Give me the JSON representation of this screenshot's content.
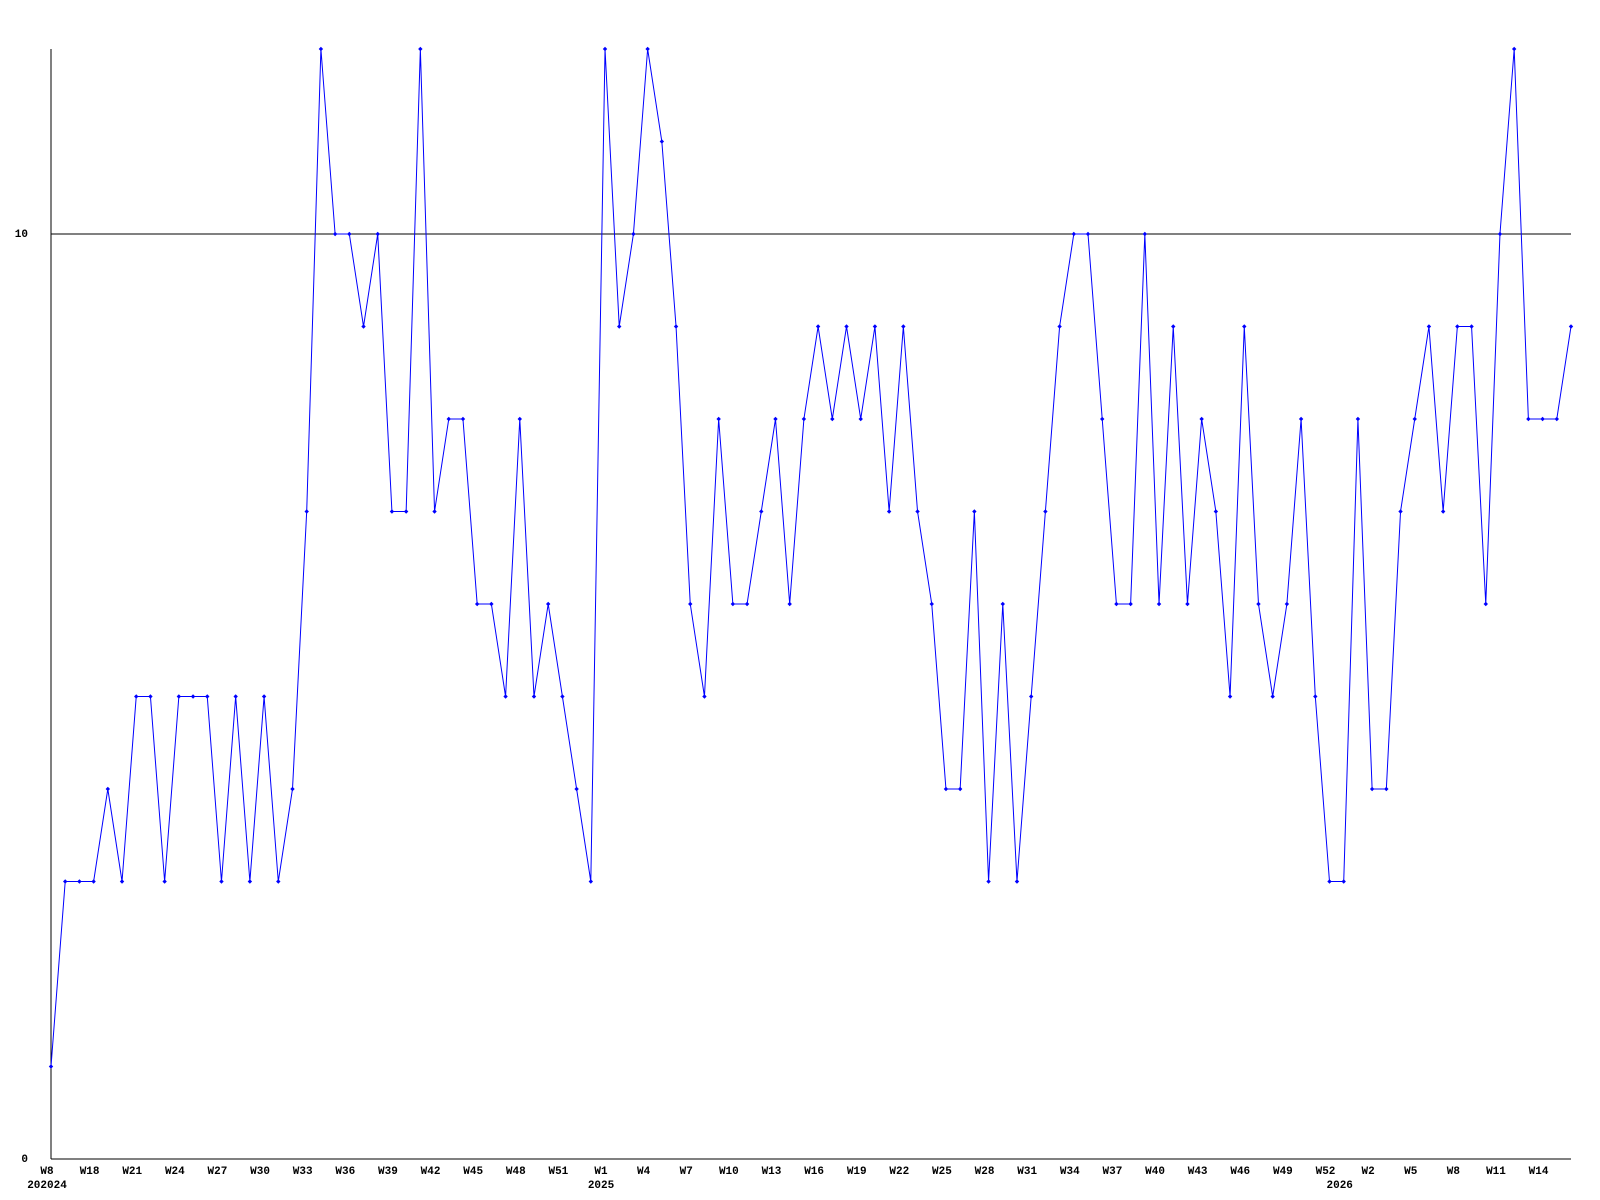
{
  "chart_data": {
    "type": "line",
    "color": "#0000ff",
    "grid": true,
    "ylim": [
      0,
      12
    ],
    "yticks": [
      0,
      10
    ],
    "categories": [
      "W8",
      null,
      null,
      "W18",
      null,
      null,
      "W21",
      null,
      null,
      "W24",
      null,
      null,
      "W27",
      null,
      null,
      "W30",
      null,
      null,
      "W33",
      null,
      null,
      "W36",
      null,
      null,
      "W39",
      null,
      null,
      "W42",
      null,
      null,
      "W45",
      null,
      null,
      "W48",
      null,
      null,
      "W51",
      null,
      null,
      "W1",
      null,
      null,
      "W4",
      null,
      null,
      "W7",
      null,
      null,
      "W10",
      null,
      null,
      "W13",
      null,
      null,
      "W16",
      null,
      null,
      "W19",
      null,
      null,
      "W22",
      null,
      null,
      "W25",
      null,
      null,
      "W28",
      null,
      null,
      "W31",
      null,
      null,
      "W34",
      null,
      null,
      "W37",
      null,
      null,
      "W40",
      null,
      null,
      "W43",
      null,
      null,
      "W46",
      null,
      null,
      "W49",
      null,
      null,
      "W52",
      null,
      null,
      "W2",
      null,
      null,
      "W5",
      null,
      null,
      "W8",
      null,
      null,
      "W11",
      null,
      null,
      "W14",
      null,
      null
    ],
    "year_labels": [
      "202024",
      null,
      null,
      null,
      null,
      null,
      null,
      null,
      null,
      null,
      null,
      null,
      null,
      null,
      null,
      null,
      null,
      null,
      null,
      null,
      null,
      null,
      null,
      null,
      null,
      null,
      null,
      null,
      null,
      null,
      null,
      null,
      null,
      null,
      null,
      null,
      null,
      null,
      null,
      "2025",
      null,
      null,
      null,
      null,
      null,
      null,
      null,
      null,
      null,
      null,
      null,
      null,
      null,
      null,
      null,
      null,
      null,
      null,
      null,
      null,
      null,
      null,
      null,
      null,
      null,
      null,
      null,
      null,
      null,
      null,
      null,
      null,
      null,
      null,
      null,
      null,
      null,
      null,
      null,
      null,
      null,
      null,
      null,
      null,
      null,
      null,
      null,
      null,
      null,
      null,
      null,
      "2026",
      null,
      null,
      null,
      null,
      null,
      null,
      null,
      null,
      null,
      null,
      null,
      null,
      null,
      null,
      null,
      null
    ],
    "values": [
      1,
      3,
      3,
      3,
      4,
      3,
      5,
      5,
      3,
      5,
      5,
      5,
      3,
      5,
      3,
      5,
      3,
      4,
      7,
      12,
      10,
      10,
      9,
      10,
      7,
      7,
      12,
      7,
      8,
      8,
      6,
      6,
      5,
      8,
      5,
      6,
      5,
      4,
      3,
      12,
      9,
      10,
      12,
      11,
      9,
      6,
      5,
      8,
      6,
      6,
      7,
      8,
      6,
      8,
      9,
      8,
      9,
      8,
      9,
      7,
      9,
      7,
      6,
      4,
      4,
      7,
      3,
      6,
      3,
      5,
      7,
      9,
      10,
      10,
      8,
      6,
      6,
      10,
      6,
      9,
      6,
      8,
      7,
      5,
      9,
      6,
      5,
      6,
      8,
      5,
      3,
      3,
      8,
      4,
      4,
      7,
      8,
      9,
      7,
      9,
      9,
      6,
      10,
      12,
      8,
      8,
      8,
      9
    ]
  }
}
